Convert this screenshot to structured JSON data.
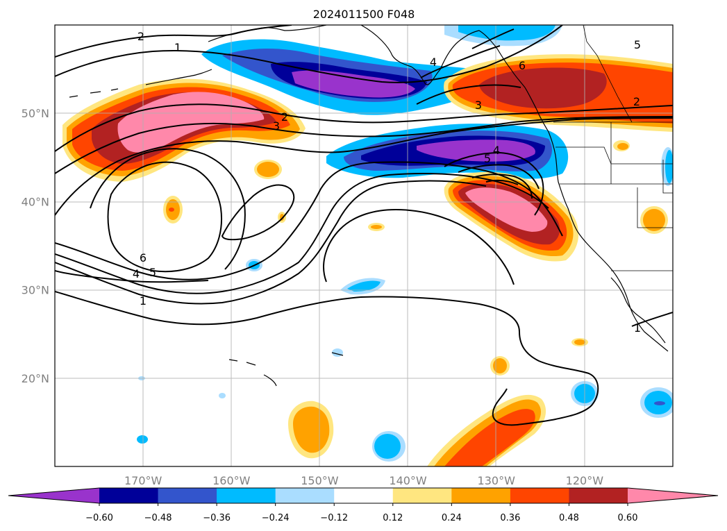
{
  "chart_data": {
    "type": "heatmap",
    "title": "2024011500 F048",
    "projection": "equirectangular",
    "lon_range": [
      -180,
      -110
    ],
    "lat_range": [
      10,
      60
    ],
    "grid": true,
    "lon_ticks": [
      {
        "value": -170,
        "label": "170°W"
      },
      {
        "value": -160,
        "label": "160°W"
      },
      {
        "value": -150,
        "label": "150°W"
      },
      {
        "value": -140,
        "label": "140°W"
      },
      {
        "value": -130,
        "label": "130°W"
      },
      {
        "value": -120,
        "label": "120°W"
      }
    ],
    "lat_ticks": [
      {
        "value": 20,
        "label": "20°N"
      },
      {
        "value": 30,
        "label": "30°N"
      },
      {
        "value": 40,
        "label": "40°N"
      },
      {
        "value": 50,
        "label": "50°N"
      }
    ],
    "colorbar": {
      "orientation": "horizontal",
      "extend": "both",
      "levels": [
        -0.6,
        -0.48,
        -0.36,
        -0.24,
        -0.12,
        0.12,
        0.24,
        0.36,
        0.48,
        0.6
      ],
      "tick_labels": [
        "−0.60",
        "−0.48",
        "−0.36",
        "−0.24",
        "−0.12",
        "0.12",
        "0.24",
        "0.36",
        "0.48",
        "0.60"
      ],
      "colors": [
        "#9933cc",
        "#000099",
        "#3355cc",
        "#00bbff",
        "#aaddff",
        "#ffffff",
        "#ffe680",
        "#ffa200",
        "#ff4500",
        "#b22222",
        "#ff88aa"
      ]
    },
    "filled_regions": [
      {
        "label": "Gulf of Alaska negative anomaly",
        "center": [
          -145,
          53
        ],
        "peak": -0.65
      },
      {
        "label": "NE Pacific negative anomaly",
        "center": [
          -134,
          45.5
        ],
        "peak": -0.65
      },
      {
        "label": "Aleutian positive anomaly",
        "center": [
          -166,
          48.5
        ],
        "peak": 0.65
      },
      {
        "label": "British Columbia positive anomaly",
        "center": [
          -122,
          52.5
        ],
        "peak": 0.55
      },
      {
        "label": "California offshore positive anomaly",
        "center": [
          -128,
          38.5
        ],
        "peak": 0.65
      },
      {
        "label": "Subtropical positive anomaly",
        "center": [
          -130,
          14
        ],
        "peak": 0.42
      },
      {
        "label": "Subtropical positive anomaly",
        "center": [
          -151.5,
          14
        ],
        "peak": 0.3
      }
    ],
    "contour_labels": [
      "2",
      "1",
      "4",
      "6",
      "5",
      "2",
      "2",
      "3",
      "3",
      "5",
      "4",
      "6",
      "4",
      "5",
      "1",
      "1"
    ]
  }
}
